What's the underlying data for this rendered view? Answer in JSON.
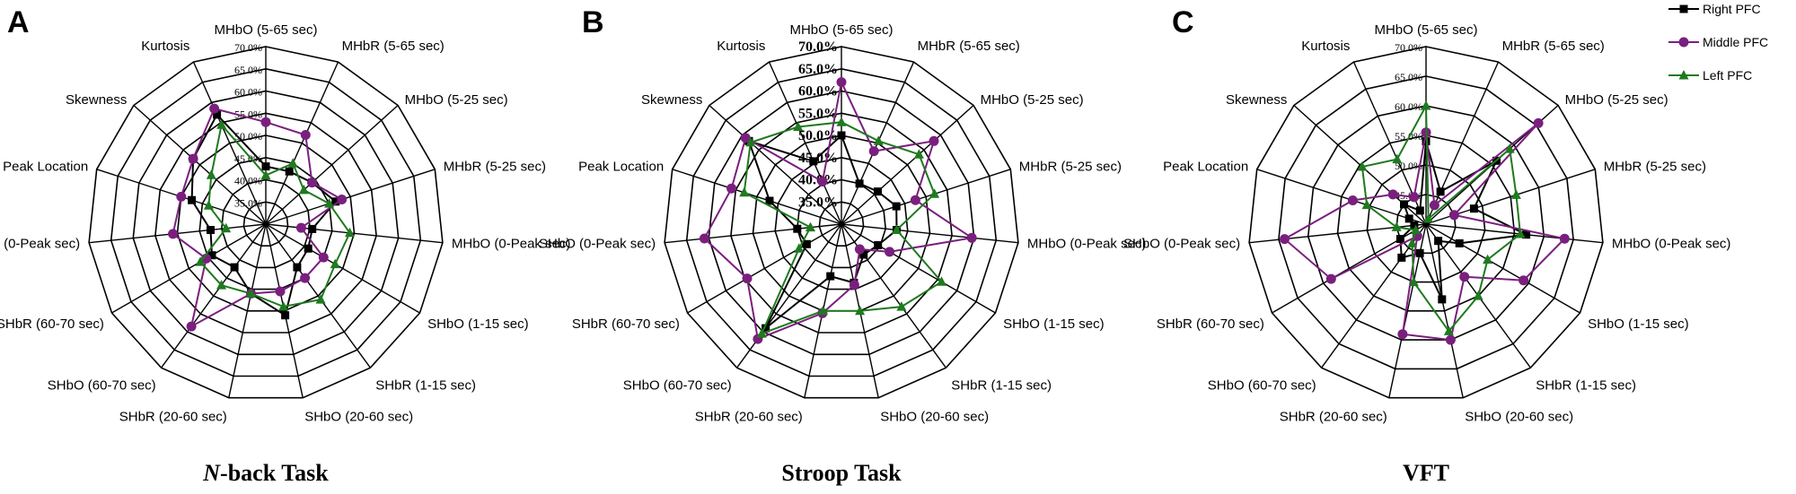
{
  "legend": [
    {
      "name": "Right PFC",
      "color": "#000000",
      "marker": "square"
    },
    {
      "name": "Middle PFC",
      "color": "#7a1f7e",
      "marker": "circle"
    },
    {
      "name": "Left PFC",
      "color": "#1f7a1f",
      "marker": "triangle"
    }
  ],
  "categories": [
    "MHbO (5-65 sec)",
    "MHbR (5-65 sec)",
    "MHbO (5-25 sec)",
    "MHbR (5-25 sec)",
    "MHbO (0-Peak sec)",
    "SHbO (1-15 sec)",
    "SHbR (1-15 sec)",
    "SHbO (20-60 sec)",
    "SHbR (20-60 sec)",
    "SHbO (60-70 sec)",
    "SHbR (60-70 sec)",
    "SHbO (0-Peak sec)",
    "Peak Location",
    "Skewness",
    "Kurtosis"
  ],
  "chart_data": [
    {
      "type": "radar",
      "panel": "A",
      "title_main": "N",
      "title_rest": "-back Task",
      "rmin": 30,
      "rmax": 70,
      "ticks": [
        "35.0%",
        "40.0%",
        "45.0%",
        "50.0%",
        "55.0%",
        "60.0%",
        "65.0%",
        "70.0%"
      ],
      "series": [
        {
          "name": "Right PFC",
          "values": [
            43.0,
            43.0,
            44.0,
            46.5,
            40.5,
            41.0,
            42.0,
            51.0,
            46.0,
            42.0,
            44.0,
            42.5,
            47.5,
            52.0,
            57.0
          ]
        },
        {
          "name": "Middle PFC",
          "values": [
            53.0,
            52.0,
            44.0,
            48.0,
            38.0,
            45.0,
            45.0,
            45.5,
            46.0,
            58.5,
            45.5,
            51.0,
            50.0,
            52.0,
            58.5
          ]
        },
        {
          "name": "Left PFC",
          "values": [
            41.0,
            45.0,
            41.5,
            45.0,
            49.0,
            48.0,
            51.0,
            49.0,
            46.0,
            47.0,
            47.0,
            39.0,
            43.5,
            46.5,
            54.5
          ]
        }
      ]
    },
    {
      "type": "radar",
      "panel": "B",
      "title_main": "Stroop Task",
      "title_rest": "",
      "rmin": 30,
      "rmax": 70,
      "ticks": [
        "35.0%",
        "40.0%",
        "45.0%",
        "50.0%",
        "55.0%",
        "60.0%",
        "65.0%",
        "70.0%"
      ],
      "series": [
        {
          "name": "Right PFC",
          "values": [
            50.0,
            40.0,
            41.0,
            43.0,
            42.5,
            39.5,
            38.5,
            43.5,
            42.0,
            59.0,
            39.0,
            40.0,
            47.0,
            58.0,
            45.5
          ]
        },
        {
          "name": "Middle PFC",
          "values": [
            62.0,
            48.0,
            58.0,
            47.5,
            59.5,
            42.5,
            37.0,
            44.0,
            50.5,
            62.0,
            54.5,
            61.0,
            56.0,
            59.0,
            40.5
          ]
        },
        {
          "name": "Left PFC",
          "values": [
            53.0,
            50.5,
            53.5,
            52.0,
            42.5,
            56.0,
            53.0,
            50.0,
            50.0,
            60.5,
            41.0,
            37.0,
            53.0,
            57.5,
            54.0
          ]
        }
      ]
    },
    {
      "type": "radar",
      "panel": "C",
      "title_main": "VFT",
      "title_rest": "",
      "rmin": 40,
      "rmax": 70,
      "ticks": [
        "45.0%",
        "50.0%",
        "55.0%",
        "60.0%",
        "65.0%",
        "70.0%"
      ],
      "series": [
        {
          "name": "Right PFC",
          "values": [
            54.0,
            46.0,
            56.0,
            48.5,
            57.0,
            46.5,
            43.5,
            53.0,
            45.0,
            47.0,
            45.0,
            42.0,
            43.0,
            45.0,
            42.5
          ]
        },
        {
          "name": "Middle PFC",
          "values": [
            55.5,
            43.5,
            65.5,
            45.0,
            63.5,
            59.0,
            51.0,
            60.0,
            59.0,
            42.5,
            58.5,
            64.0,
            53.0,
            47.5,
            45.0
          ]
        },
        {
          "name": "Left PFC",
          "values": [
            60.0,
            41.0,
            59.0,
            56.0,
            56.0,
            52.0,
            55.0,
            58.5,
            50.0,
            44.0,
            42.0,
            45.0,
            50.5,
            54.5,
            52.0
          ]
        }
      ]
    }
  ]
}
